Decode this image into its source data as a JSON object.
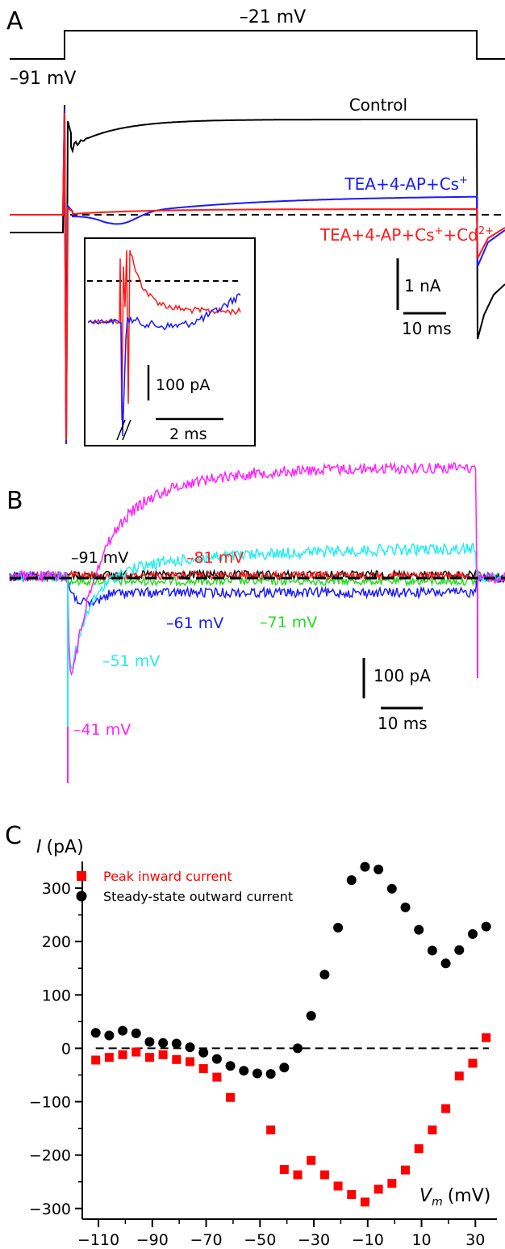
{
  "panels": {
    "A": {
      "letter": "A",
      "protocol": {
        "hold_label": "–91 mV",
        "step_label": "–21 mV"
      },
      "traces": [
        {
          "label": "Control",
          "color": "#000000"
        },
        {
          "label": "TEA+4-AP+Cs",
          "sup": "+",
          "color": "#1a1aff"
        },
        {
          "label": "TEA+4-AP+Cs",
          "sup": "+",
          "label2": "+Cd",
          "sup2": "2+",
          "color": "#ff1a1a"
        }
      ],
      "scalebar": {
        "y_label": "1 nA",
        "x_label": "10 ms"
      },
      "inset_scalebar": {
        "y_label": "100 pA",
        "x_label": "2 ms"
      }
    },
    "B": {
      "letter": "B",
      "traces": [
        {
          "label": "–91 mV",
          "color": "#000000"
        },
        {
          "label": "–81 mV",
          "color": "#ff1a1a"
        },
        {
          "label": "–71 mV",
          "color": "#22dd22"
        },
        {
          "label": "–61 mV",
          "color": "#1a1aff"
        },
        {
          "label": "–51 mV",
          "color": "#22eeee"
        },
        {
          "label": "–41 mV",
          "color": "#ff22ff"
        }
      ],
      "scalebar": {
        "y_label": "100 pA",
        "x_label": "10 ms"
      }
    },
    "C": {
      "letter": "C"
    }
  },
  "chart_data": {
    "type": "scatter",
    "ylabel_italic": "I",
    "ylabel_unit": "(pA)",
    "xlabel_italic": "V",
    "xlabel_sub": "m",
    "xlabel_unit": "(mV)",
    "xlim": [
      -116,
      38
    ],
    "ylim": [
      -320,
      350
    ],
    "xticks": [
      -110,
      -90,
      -70,
      -50,
      -30,
      -10,
      10,
      30
    ],
    "yticks": [
      -300,
      -200,
      -100,
      0,
      100,
      200,
      300
    ],
    "zero_line": "dashed",
    "legend_position": "top-left",
    "series": [
      {
        "name": "Peak inward current",
        "marker": "square",
        "color": "#ff0000",
        "x": [
          -111,
          -106,
          -101,
          -96,
          -91,
          -86,
          -81,
          -76,
          -71,
          -66,
          -61,
          -46,
          -41,
          -36,
          -31,
          -26,
          -21,
          -16,
          -11,
          -6,
          -1,
          4,
          9,
          14,
          19,
          24,
          29,
          34
        ],
        "y": [
          -22,
          -17,
          -12,
          -7,
          -17,
          -12,
          -21,
          -25,
          -38,
          -54,
          -92,
          -153,
          -227,
          -237,
          -210,
          -237,
          -258,
          -274,
          -288,
          -264,
          -253,
          -228,
          -188,
          -153,
          -113,
          -52,
          -28,
          20
        ]
      },
      {
        "name": "Steady-state outward current",
        "marker": "circle",
        "color": "#000000",
        "x": [
          -111,
          -106,
          -101,
          -96,
          -91,
          -86,
          -81,
          -76,
          -71,
          -66,
          -61,
          -56,
          -51,
          -46,
          -41,
          -36,
          -31,
          -26,
          -21,
          -16,
          -11,
          -6,
          -1,
          4,
          9,
          14,
          19,
          24,
          29,
          34
        ],
        "y": [
          29,
          24,
          33,
          28,
          12,
          10,
          9,
          2,
          -8,
          -20,
          -33,
          -42,
          -47,
          -48,
          -36,
          0,
          61,
          138,
          226,
          315,
          340,
          335,
          299,
          264,
          222,
          183,
          159,
          184,
          214,
          228
        ]
      }
    ]
  }
}
